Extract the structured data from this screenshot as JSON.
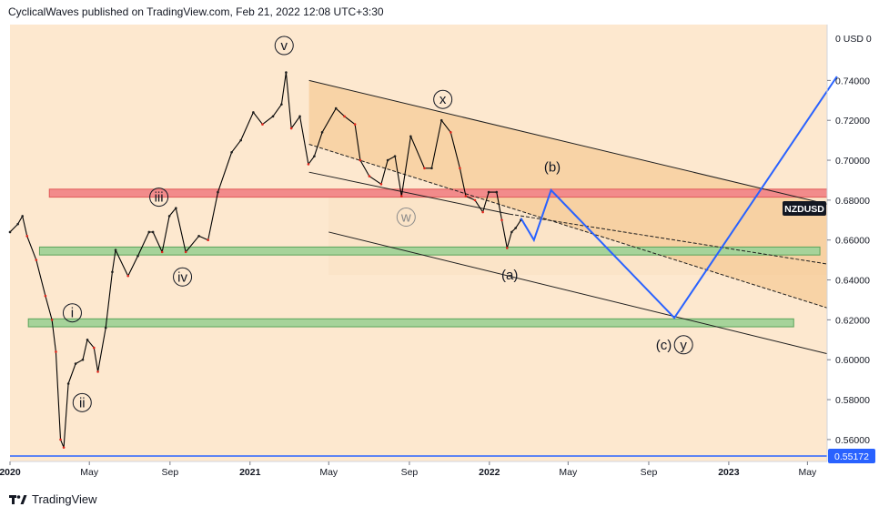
{
  "header": {
    "text": "CyclicalWaves published on TradingView.com, Feb 21, 2022 12:08 UTC+3:30"
  },
  "footer": {
    "brand": "TradingView"
  },
  "chart_data": {
    "type": "line",
    "symbol_label": "NZDUSD",
    "axis_currency": "USD",
    "axis_top_label": "0 USD 0",
    "last_price_label": "0.55172",
    "ylim": [
      0.549,
      0.768
    ],
    "xlim": [
      "2020-01-01",
      "2023-05-31"
    ],
    "y_ticks": [
      {
        "value": 0.56,
        "label": "0.56000"
      },
      {
        "value": 0.58,
        "label": "0.58000"
      },
      {
        "value": 0.6,
        "label": "0.60000"
      },
      {
        "value": 0.62,
        "label": "0.62000"
      },
      {
        "value": 0.64,
        "label": "0.64000"
      },
      {
        "value": 0.66,
        "label": "0.66000"
      },
      {
        "value": 0.68,
        "label": "0.68000"
      },
      {
        "value": 0.7,
        "label": "0.70000"
      },
      {
        "value": 0.72,
        "label": "0.72000"
      },
      {
        "value": 0.74,
        "label": "0.74000"
      }
    ],
    "x_ticks": [
      {
        "date": "2020-01-01",
        "label": "2020",
        "bold": true
      },
      {
        "date": "2020-05-01",
        "label": "May",
        "bold": false
      },
      {
        "date": "2020-09-01",
        "label": "Sep",
        "bold": false
      },
      {
        "date": "2021-01-01",
        "label": "2021",
        "bold": true
      },
      {
        "date": "2021-05-01",
        "label": "May",
        "bold": false
      },
      {
        "date": "2021-09-01",
        "label": "Sep",
        "bold": false
      },
      {
        "date": "2022-01-01",
        "label": "2022",
        "bold": true
      },
      {
        "date": "2022-05-01",
        "label": "May",
        "bold": false
      },
      {
        "date": "2022-09-01",
        "label": "Sep",
        "bold": false
      },
      {
        "date": "2023-01-01",
        "label": "2023",
        "bold": true
      },
      {
        "date": "2023-05-01",
        "label": "May",
        "bold": false
      }
    ],
    "series": [
      {
        "kind": "price",
        "color": "#000000",
        "points": [
          [
            "2020-01-01",
            0.664
          ],
          [
            "2020-01-13",
            0.668
          ],
          [
            "2020-01-20",
            0.672
          ],
          [
            "2020-01-27",
            0.662
          ],
          [
            "2020-02-10",
            0.65
          ],
          [
            "2020-02-24",
            0.632
          ],
          [
            "2020-03-05",
            0.62
          ],
          [
            "2020-03-11",
            0.604
          ],
          [
            "2020-03-18",
            0.56
          ],
          [
            "2020-03-23",
            0.556
          ],
          [
            "2020-03-30",
            0.588
          ],
          [
            "2020-04-10",
            0.598
          ],
          [
            "2020-04-21",
            0.6
          ],
          [
            "2020-04-28",
            0.61
          ],
          [
            "2020-05-08",
            0.606
          ],
          [
            "2020-05-14",
            0.594
          ],
          [
            "2020-05-26",
            0.616
          ],
          [
            "2020-06-05",
            0.644
          ],
          [
            "2020-06-10",
            0.655
          ],
          [
            "2020-06-29",
            0.642
          ],
          [
            "2020-07-14",
            0.652
          ],
          [
            "2020-07-31",
            0.664
          ],
          [
            "2020-08-06",
            0.664
          ],
          [
            "2020-08-20",
            0.654
          ],
          [
            "2020-08-31",
            0.672
          ],
          [
            "2020-09-10",
            0.676
          ],
          [
            "2020-09-25",
            0.654
          ],
          [
            "2020-10-15",
            0.662
          ],
          [
            "2020-10-29",
            0.66
          ],
          [
            "2020-11-13",
            0.684
          ],
          [
            "2020-12-04",
            0.704
          ],
          [
            "2020-12-18",
            0.71
          ],
          [
            "2021-01-06",
            0.724
          ],
          [
            "2021-01-20",
            0.718
          ],
          [
            "2021-02-05",
            0.722
          ],
          [
            "2021-02-18",
            0.728
          ],
          [
            "2021-02-25",
            0.744
          ],
          [
            "2021-03-05",
            0.716
          ],
          [
            "2021-03-18",
            0.722
          ],
          [
            "2021-03-31",
            0.698
          ],
          [
            "2021-04-09",
            0.702
          ],
          [
            "2021-04-21",
            0.714
          ],
          [
            "2021-05-12",
            0.726
          ],
          [
            "2021-05-25",
            0.722
          ],
          [
            "2021-06-10",
            0.718
          ],
          [
            "2021-06-18",
            0.7
          ],
          [
            "2021-07-02",
            0.692
          ],
          [
            "2021-07-20",
            0.688
          ],
          [
            "2021-07-30",
            0.7
          ],
          [
            "2021-08-10",
            0.702
          ],
          [
            "2021-08-20",
            0.682
          ],
          [
            "2021-09-03",
            0.712
          ],
          [
            "2021-09-24",
            0.696
          ],
          [
            "2021-10-05",
            0.696
          ],
          [
            "2021-10-20",
            0.72
          ],
          [
            "2021-11-03",
            0.714
          ],
          [
            "2021-11-17",
            0.696
          ],
          [
            "2021-11-26",
            0.682
          ],
          [
            "2021-12-10",
            0.68
          ],
          [
            "2021-12-22",
            0.674
          ],
          [
            "2021-12-31",
            0.684
          ],
          [
            "2022-01-12",
            0.684
          ],
          [
            "2022-01-20",
            0.67
          ],
          [
            "2022-01-28",
            0.656
          ],
          [
            "2022-02-04",
            0.664
          ],
          [
            "2022-02-10",
            0.666
          ],
          [
            "2022-02-18",
            0.67
          ]
        ]
      },
      {
        "kind": "projection",
        "color": "#2962ff",
        "points": [
          [
            "2022-02-18",
            0.671
          ],
          [
            "2022-03-10",
            0.66
          ],
          [
            "2022-04-05",
            0.685
          ],
          [
            "2022-10-10",
            0.621
          ],
          [
            "2023-06-15",
            0.742
          ]
        ]
      }
    ],
    "channel": {
      "color": "#1f1f1f",
      "upper_line": [
        [
          "2021-04-01",
          0.74
        ],
        [
          "2023-05-31",
          0.678
        ]
      ],
      "mid_line_solid": [
        [
          "2021-04-01",
          0.694
        ],
        [
          "2022-02-01",
          0.673
        ]
      ],
      "mid_line_dashed": [
        [
          "2022-02-01",
          0.673
        ],
        [
          "2023-05-31",
          0.648
        ]
      ],
      "lower_parallel_dashed": [
        [
          "2021-04-01",
          0.708
        ],
        [
          "2023-05-31",
          0.626
        ]
      ],
      "bottom_line": [
        [
          "2021-05-01",
          0.664
        ],
        [
          "2023-05-31",
          0.603
        ]
      ],
      "shading": {
        "color": "#f4c185",
        "polygon": [
          [
            "2021-04-01",
            0.74
          ],
          [
            "2023-05-31",
            0.678
          ],
          [
            "2023-05-31",
            0.626
          ],
          [
            "2021-04-01",
            0.708
          ]
        ]
      },
      "box": {
        "color": "#fbe4c8",
        "x_range": [
          "2021-05-01",
          "2023-05-31"
        ],
        "y_range": [
          0.6425,
          0.685
        ]
      }
    },
    "zones": [
      {
        "name": "resistance",
        "color": "#f28b8b",
        "border": "#e05a5a",
        "x_range": [
          "2020-03-01",
          "2023-05-31"
        ],
        "y_range": [
          0.6815,
          0.6855
        ]
      },
      {
        "name": "support_upper",
        "color": "#a6d39a",
        "border": "#5ba35a",
        "x_range": [
          "2020-02-15",
          "2023-05-20"
        ],
        "y_range": [
          0.6525,
          0.6565
        ]
      },
      {
        "name": "support_lower",
        "color": "#a6d39a",
        "border": "#5ba35a",
        "x_range": [
          "2020-01-29",
          "2023-04-10"
        ],
        "y_range": [
          0.6165,
          0.6205
        ]
      }
    ],
    "horizontal_line": {
      "value": 0.55172,
      "color": "#2962ff"
    },
    "annotations": [
      {
        "text": "v",
        "date": "2021-02-22",
        "value": 0.7575,
        "circled": true,
        "color": "#131722"
      },
      {
        "text": "iii",
        "date": "2020-08-15",
        "value": 0.6815,
        "circled": true,
        "color": "#131722"
      },
      {
        "text": "iv",
        "date": "2020-09-20",
        "value": 0.6415,
        "circled": true,
        "color": "#131722"
      },
      {
        "text": "i",
        "date": "2020-04-05",
        "value": 0.6235,
        "circled": true,
        "color": "#131722"
      },
      {
        "text": "ii",
        "date": "2020-04-20",
        "value": 0.5785,
        "circled": true,
        "color": "#131722"
      },
      {
        "text": "x",
        "date": "2021-10-22",
        "value": 0.7305,
        "circled": true,
        "color": "#131722"
      },
      {
        "text": "w",
        "date": "2021-08-27",
        "value": 0.6715,
        "circled": true,
        "color": "#8a8a8a"
      },
      {
        "text": "(b)",
        "date": "2022-04-07",
        "value": 0.6965,
        "circled": false,
        "color": "#131722"
      },
      {
        "text": "(a)",
        "date": "2022-02-01",
        "value": 0.6425,
        "circled": false,
        "color": "#131722"
      },
      {
        "text": "(c)",
        "date": "2022-09-24",
        "value": 0.6075,
        "circled": false,
        "color": "#131722"
      },
      {
        "text": "y",
        "date": "2022-10-24",
        "value": 0.6075,
        "circled": true,
        "color": "#131722"
      }
    ]
  }
}
